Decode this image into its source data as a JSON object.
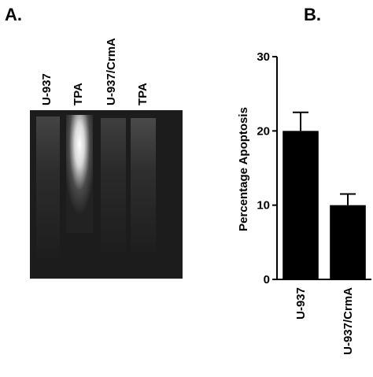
{
  "panel_a": {
    "label": "A.",
    "lanes": [
      "U-937",
      "TPA",
      "U-937/CrmA",
      "TPA"
    ]
  },
  "chart_data": {
    "type": "bar",
    "panel_label": "B.",
    "ylabel": "Percentage Apoptosis",
    "categories": [
      "U-937",
      "U-937/CrmA"
    ],
    "values": [
      20,
      10
    ],
    "errors": [
      2.5,
      1.5
    ],
    "color": "#000000",
    "ylim": [
      0,
      30
    ],
    "yticks": [
      0,
      10,
      20,
      30
    ]
  }
}
